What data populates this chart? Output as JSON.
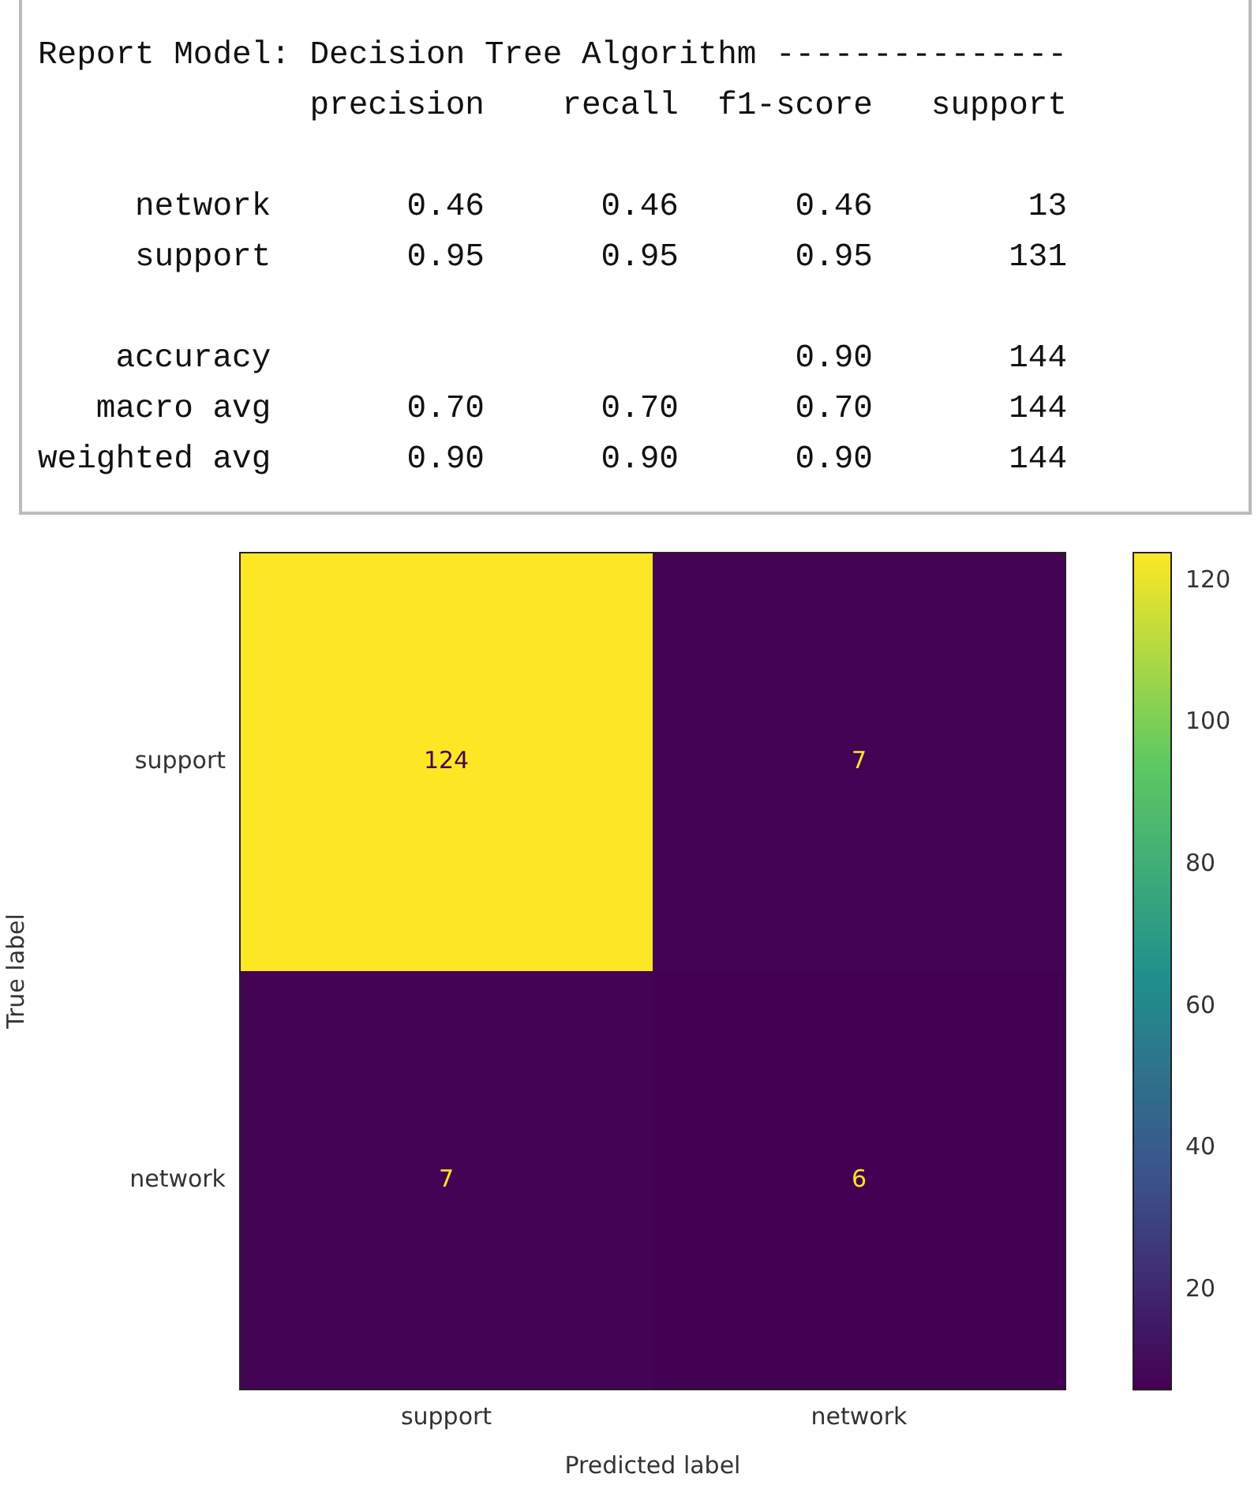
{
  "chart_data": [
    {
      "type": "other",
      "title": "Report Model: Decision Tree Algorithm ---------------",
      "annotations": [
        "              precision    recall  f1-score   support",
        "     network       0.46      0.46      0.46        13",
        "     support       0.95      0.95      0.95       131",
        "    accuracy                           0.90       144",
        "   macro avg       0.70      0.70      0.70       144",
        "weighted avg       0.90      0.90      0.90       144"
      ]
    },
    {
      "type": "heatmap",
      "xlabel": "Predicted label",
      "ylabel": "True label",
      "categories": [
        "support",
        "network"
      ],
      "y_categories": [
        "support",
        "network"
      ],
      "cells": [
        [
          124,
          7
        ],
        [
          7,
          6
        ]
      ],
      "clim": [
        6,
        124
      ],
      "cticks": [
        20,
        40,
        60,
        80,
        100,
        120
      ],
      "data_labels": true
    }
  ]
}
